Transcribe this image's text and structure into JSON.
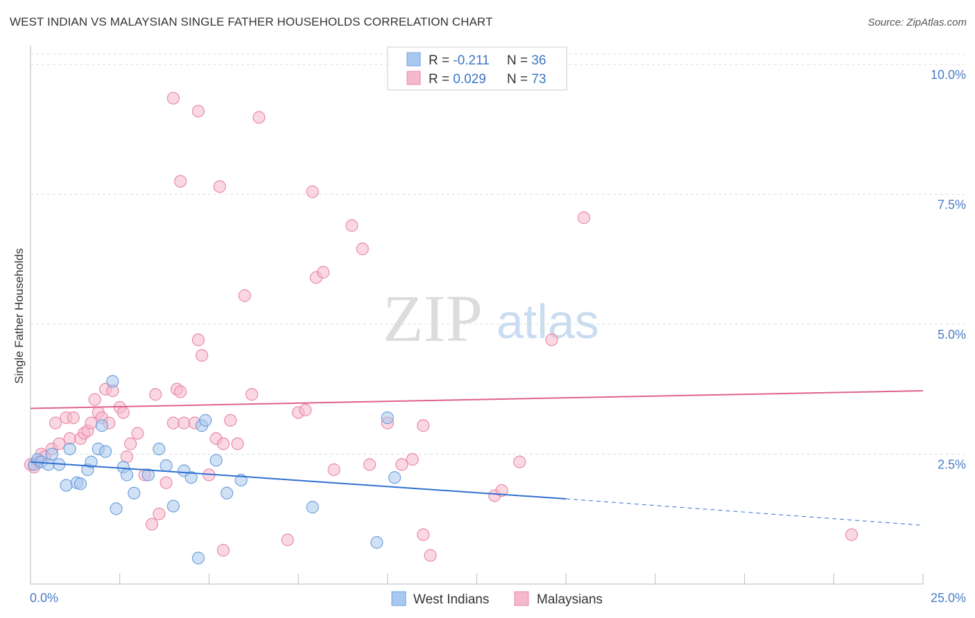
{
  "title": "WEST INDIAN VS MALAYSIAN SINGLE FATHER HOUSEHOLDS CORRELATION CHART",
  "source": "Source: ZipAtlas.com",
  "watermark": {
    "zip": "ZIP",
    "atlas": "atlas"
  },
  "colors": {
    "blue_fill": "#a9c8ef",
    "blue_stroke": "#6d9fdc",
    "blue_line": "#2f6fcf",
    "pink_fill": "#f6b8cb",
    "pink_stroke": "#e88aa8",
    "pink_line": "#e0608e",
    "grid": "#dddddd",
    "axis": "#bbbbbb",
    "tick_text": "#4a7cc7"
  },
  "legend": {
    "rows": [
      {
        "r_label": "R = ",
        "r_value": "-0.211",
        "n_label": "N = ",
        "n_value": "36"
      },
      {
        "r_label": "R = ",
        "r_value": "0.029",
        "n_label": "N = ",
        "n_value": "73"
      }
    ]
  },
  "bottom_legend": [
    "West Indians",
    "Malaysians"
  ],
  "chart_data": {
    "type": "scatter",
    "title": "WEST INDIAN VS MALAYSIAN SINGLE FATHER HOUSEHOLDS CORRELATION CHART",
    "xlabel": "",
    "ylabel": "Single Father Households",
    "xlim": [
      0,
      25
    ],
    "ylim": [
      0,
      10.2
    ],
    "x_tick_labels": [
      {
        "value": 0,
        "label": "0.0%"
      },
      {
        "value": 25,
        "label": "25.0%"
      }
    ],
    "y_ticks": [
      {
        "value": 2.5,
        "label": "2.5%"
      },
      {
        "value": 5.0,
        "label": "5.0%"
      },
      {
        "value": 7.5,
        "label": "7.5%"
      },
      {
        "value": 10.0,
        "label": "10.0%"
      }
    ],
    "x_minor_ticks": [
      2.5,
      5,
      7.5,
      10,
      12.5,
      15,
      17.5,
      20,
      22.5,
      25
    ],
    "series": [
      {
        "name": "West Indians",
        "r": -0.211,
        "n": 36,
        "trend": {
          "x0": 0,
          "y0": 2.35,
          "x1": 15.0,
          "y1": 1.64,
          "dashed_to_x": 25,
          "dashed_to_y": 1.13
        },
        "points": [
          [
            0.1,
            2.3
          ],
          [
            0.2,
            2.4
          ],
          [
            0.3,
            2.35
          ],
          [
            0.5,
            2.3
          ],
          [
            0.6,
            2.5
          ],
          [
            0.8,
            2.3
          ],
          [
            1.0,
            1.9
          ],
          [
            1.1,
            2.6
          ],
          [
            1.3,
            1.95
          ],
          [
            1.4,
            1.93
          ],
          [
            1.6,
            2.2
          ],
          [
            1.7,
            2.35
          ],
          [
            2.0,
            3.05
          ],
          [
            1.9,
            2.6
          ],
          [
            2.1,
            2.55
          ],
          [
            2.3,
            3.9
          ],
          [
            2.4,
            1.45
          ],
          [
            2.6,
            2.25
          ],
          [
            2.7,
            2.1
          ],
          [
            2.9,
            1.75
          ],
          [
            3.3,
            2.1
          ],
          [
            3.6,
            2.6
          ],
          [
            3.8,
            2.28
          ],
          [
            4.0,
            1.5
          ],
          [
            4.3,
            2.18
          ],
          [
            4.5,
            2.05
          ],
          [
            4.8,
            3.05
          ],
          [
            4.9,
            3.15
          ],
          [
            5.2,
            2.38
          ],
          [
            5.5,
            1.75
          ],
          [
            5.9,
            2.0
          ],
          [
            7.9,
            1.48
          ],
          [
            9.7,
            0.8
          ],
          [
            10.0,
            3.2
          ],
          [
            10.2,
            2.05
          ],
          [
            4.7,
            0.5
          ]
        ]
      },
      {
        "name": "Malaysians",
        "r": 0.029,
        "n": 73,
        "trend": {
          "x0": 0,
          "y0": 3.38,
          "x1": 25,
          "y1": 3.72
        },
        "points": [
          [
            0.1,
            2.25
          ],
          [
            0.2,
            2.35
          ],
          [
            0.3,
            2.5
          ],
          [
            0.4,
            2.45
          ],
          [
            0.6,
            2.6
          ],
          [
            0.7,
            3.1
          ],
          [
            0.8,
            2.7
          ],
          [
            1.0,
            3.2
          ],
          [
            1.1,
            2.8
          ],
          [
            1.2,
            3.2
          ],
          [
            1.4,
            2.8
          ],
          [
            1.5,
            2.9
          ],
          [
            1.6,
            2.95
          ],
          [
            1.7,
            3.1
          ],
          [
            1.8,
            3.55
          ],
          [
            1.9,
            3.3
          ],
          [
            2.0,
            3.2
          ],
          [
            2.1,
            3.75
          ],
          [
            2.2,
            3.1
          ],
          [
            2.3,
            3.72
          ],
          [
            2.5,
            3.4
          ],
          [
            2.6,
            3.3
          ],
          [
            2.7,
            2.45
          ],
          [
            2.8,
            2.7
          ],
          [
            3.0,
            2.9
          ],
          [
            3.2,
            2.1
          ],
          [
            3.4,
            1.15
          ],
          [
            3.5,
            3.65
          ],
          [
            3.6,
            1.35
          ],
          [
            3.8,
            1.95
          ],
          [
            4.0,
            3.1
          ],
          [
            4.1,
            3.75
          ],
          [
            4.2,
            3.7
          ],
          [
            4.3,
            3.1
          ],
          [
            4.6,
            3.1
          ],
          [
            4.7,
            4.7
          ],
          [
            4.8,
            4.4
          ],
          [
            5.0,
            2.1
          ],
          [
            5.2,
            2.8
          ],
          [
            5.4,
            2.7
          ],
          [
            5.6,
            3.15
          ],
          [
            5.8,
            2.7
          ],
          [
            6.0,
            5.55
          ],
          [
            6.2,
            3.65
          ],
          [
            7.5,
            3.3
          ],
          [
            7.7,
            3.35
          ],
          [
            8.0,
            5.9
          ],
          [
            8.2,
            6.0
          ],
          [
            8.5,
            2.2
          ],
          [
            9.0,
            6.9
          ],
          [
            9.3,
            6.45
          ],
          [
            9.5,
            2.3
          ],
          [
            10.0,
            3.1
          ],
          [
            10.4,
            2.3
          ],
          [
            10.7,
            2.4
          ],
          [
            11.0,
            3.05
          ],
          [
            11.2,
            0.55
          ],
          [
            11.0,
            0.95
          ],
          [
            13.0,
            1.7
          ],
          [
            13.2,
            1.8
          ],
          [
            13.7,
            2.35
          ],
          [
            14.6,
            4.7
          ],
          [
            15.5,
            7.05
          ],
          [
            4.0,
            9.35
          ],
          [
            4.7,
            9.1
          ],
          [
            6.4,
            8.98
          ],
          [
            4.2,
            7.75
          ],
          [
            5.3,
            7.65
          ],
          [
            7.9,
            7.55
          ],
          [
            7.2,
            0.85
          ],
          [
            5.4,
            0.65
          ],
          [
            23.0,
            0.95
          ],
          [
            0.0,
            2.3
          ]
        ]
      }
    ]
  }
}
